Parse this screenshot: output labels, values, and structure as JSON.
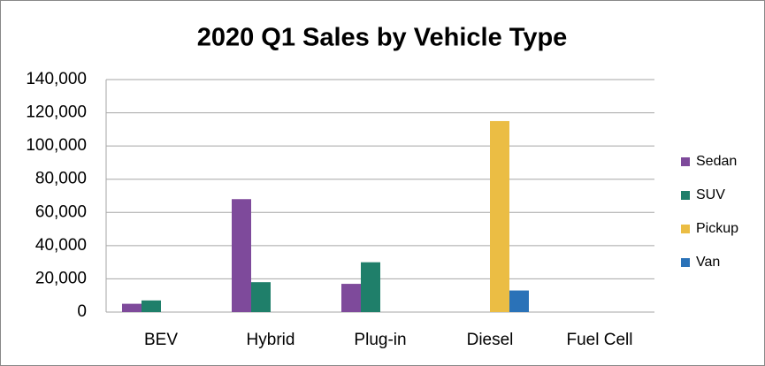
{
  "chart_data": {
    "type": "bar",
    "title": "2020 Q1 Sales by Vehicle Type",
    "categories": [
      "BEV",
      "Hybrid",
      "Plug-in",
      "Diesel",
      "Fuel Cell"
    ],
    "series": [
      {
        "name": "Sedan",
        "color": "#7e4a9b",
        "values": [
          5000,
          68000,
          17000,
          0,
          0
        ]
      },
      {
        "name": "SUV",
        "color": "#1f7f6a",
        "values": [
          7000,
          18000,
          30000,
          0,
          0
        ]
      },
      {
        "name": "Pickup",
        "color": "#ebbd44",
        "values": [
          0,
          0,
          0,
          115000,
          0
        ]
      },
      {
        "name": "Van",
        "color": "#2a72b8",
        "values": [
          0,
          0,
          0,
          13000,
          0
        ]
      }
    ],
    "ylim": [
      0,
      140000
    ],
    "yticks": [
      0,
      {
        "value": 20000,
        "label": "20,000"
      },
      {
        "value": 40000,
        "label": "40,000"
      },
      {
        "value": 60000,
        "label": "60,000"
      },
      {
        "value": 80000,
        "label": "80,000"
      },
      {
        "value": 100000,
        "label": "100,000"
      },
      {
        "value": 120000,
        "label": "120,000"
      },
      {
        "value": 140000,
        "label": "140,000"
      }
    ],
    "grid": true,
    "legend": "right"
  }
}
